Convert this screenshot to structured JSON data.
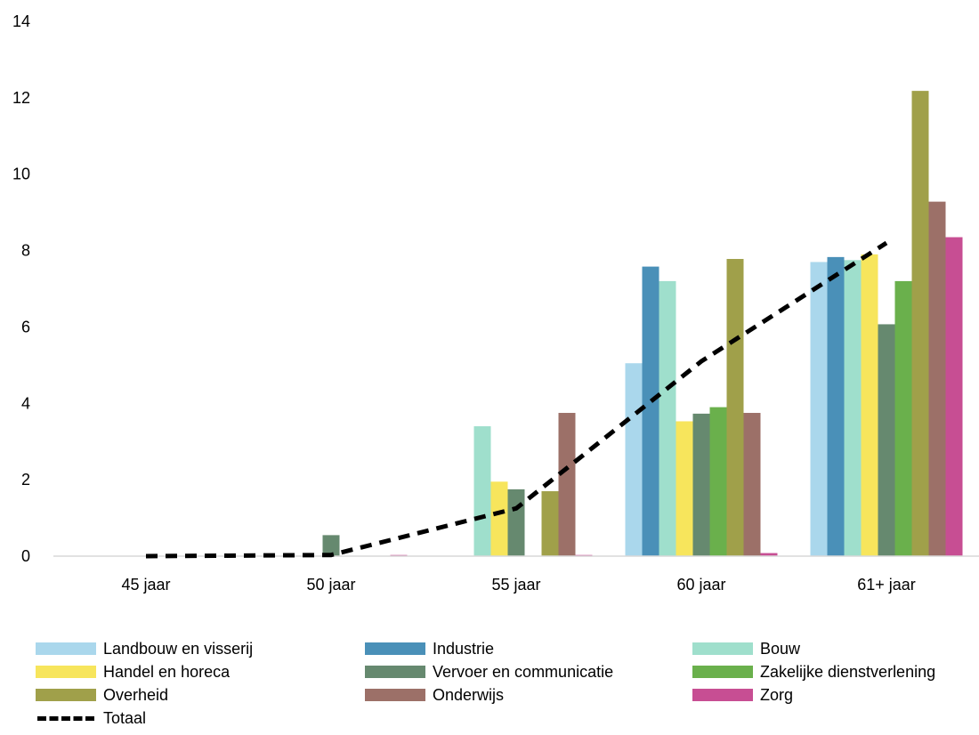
{
  "chart_data": {
    "type": "bar",
    "categories": [
      "45 jaar",
      "50 jaar",
      "55 jaar",
      "60 jaar",
      "61+ jaar"
    ],
    "ylim": [
      0,
      14
    ],
    "yticks": [
      "0",
      "2",
      "4",
      "6",
      "8",
      "10",
      "12",
      "14"
    ],
    "grid": false,
    "legend_position": "bottom",
    "series": [
      {
        "name": "Landbouw en visserij",
        "color": "#aad7ec",
        "values": [
          0,
          0,
          0,
          5.05,
          7.7
        ]
      },
      {
        "name": "Industrie",
        "color": "#4a90b8",
        "values": [
          0,
          0,
          0,
          7.58,
          7.83
        ]
      },
      {
        "name": "Bouw",
        "color": "#9fdfcc",
        "values": [
          0,
          0,
          3.4,
          7.2,
          7.75
        ]
      },
      {
        "name": "Handel en horeca",
        "color": "#f7e55c",
        "values": [
          0,
          0,
          1.95,
          3.53,
          7.9
        ]
      },
      {
        "name": "Vervoer en communicatie",
        "color": "#66896f",
        "values": [
          0,
          0.55,
          1.75,
          3.73,
          6.07
        ]
      },
      {
        "name": "Zakelijke dienstverlening",
        "color": "#6ab04c",
        "values": [
          0,
          0,
          0,
          3.9,
          7.2
        ]
      },
      {
        "name": "Overheid",
        "color": "#a0a04a",
        "values": [
          0,
          0,
          1.7,
          7.78,
          12.18
        ]
      },
      {
        "name": "Onderwijs",
        "color": "#9c7068",
        "values": [
          0,
          0,
          3.75,
          3.75,
          9.28
        ]
      },
      {
        "name": "Zorg",
        "color": "#c74e93",
        "values": [
          0,
          0.03,
          0.03,
          0.08,
          8.35
        ]
      }
    ],
    "line_series": {
      "name": "Totaal",
      "style": "dashed",
      "color": "#000000",
      "values": [
        0,
        0.03,
        1.25,
        5.1,
        8.2
      ]
    }
  }
}
